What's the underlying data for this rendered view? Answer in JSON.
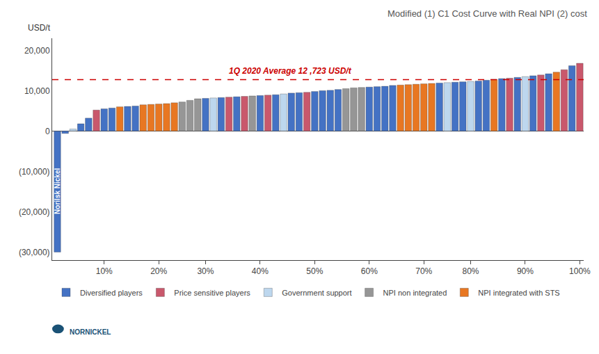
{
  "chart_data": {
    "type": "bar",
    "title": "Modified (1) C1 Cost Curve with Real NPI (2) cost",
    "y_label": "USD/t",
    "categories": [
      null,
      null,
      null,
      null,
      null,
      null,
      "10%",
      null,
      null,
      null,
      null,
      null,
      null,
      "20%",
      null,
      null,
      null,
      null,
      null,
      "30%",
      null,
      null,
      null,
      null,
      null,
      null,
      "40%",
      null,
      null,
      null,
      null,
      null,
      null,
      "50%",
      null,
      null,
      null,
      null,
      null,
      null,
      "60%",
      null,
      null,
      null,
      null,
      null,
      null,
      "70%",
      null,
      null,
      null,
      null,
      null,
      "80%",
      null,
      null,
      null,
      null,
      null,
      null,
      "90%",
      null,
      null,
      null,
      null,
      null,
      null,
      "100%"
    ],
    "series": [
      {
        "name": "Diversified players",
        "color": "#4472C4",
        "values": [
          -30000,
          -600,
          null,
          1800,
          3200,
          null,
          5500,
          5700,
          null,
          6100,
          6200,
          null,
          null,
          null,
          null,
          null,
          null,
          null,
          null,
          8100,
          null,
          8300,
          null,
          8500,
          null,
          null,
          8800,
          null,
          9000,
          null,
          9400,
          9500,
          null,
          9800,
          10000,
          10100,
          10300,
          null,
          null,
          null,
          10900,
          11000,
          11100,
          11300,
          null,
          null,
          null,
          null,
          null,
          11900,
          null,
          12100,
          12200,
          null,
          12400,
          12600,
          null,
          13000,
          null,
          13300,
          null,
          13700,
          null,
          14200,
          null,
          null,
          16200,
          null
        ]
      },
      {
        "name": "Price sensitive players",
        "color": "#C9586C",
        "values": [
          null,
          null,
          null,
          null,
          null,
          5200,
          null,
          null,
          null,
          null,
          null,
          null,
          null,
          null,
          null,
          null,
          null,
          null,
          null,
          null,
          null,
          null,
          8400,
          null,
          8600,
          null,
          null,
          8900,
          null,
          null,
          null,
          null,
          9600,
          null,
          null,
          null,
          null,
          null,
          null,
          null,
          null,
          null,
          null,
          null,
          null,
          null,
          null,
          null,
          null,
          null,
          null,
          null,
          null,
          null,
          null,
          null,
          null,
          null,
          13100,
          null,
          null,
          null,
          13900,
          null,
          null,
          15200,
          null,
          16800
        ]
      },
      {
        "name": "Government support",
        "color": "#BDD7EE",
        "values": [
          null,
          null,
          500,
          null,
          null,
          null,
          null,
          null,
          null,
          null,
          null,
          null,
          null,
          null,
          null,
          null,
          null,
          null,
          null,
          null,
          8200,
          null,
          null,
          null,
          null,
          null,
          null,
          null,
          null,
          9200,
          null,
          null,
          null,
          null,
          null,
          null,
          null,
          null,
          null,
          null,
          null,
          null,
          null,
          null,
          null,
          null,
          null,
          null,
          null,
          null,
          12000,
          null,
          null,
          12300,
          null,
          null,
          null,
          null,
          null,
          null,
          13500,
          null,
          null,
          null,
          null,
          null,
          null,
          null
        ]
      },
      {
        "name": "NPI non integrated",
        "color": "#969696",
        "values": [
          null,
          null,
          null,
          null,
          null,
          null,
          null,
          null,
          null,
          null,
          null,
          null,
          null,
          null,
          null,
          null,
          7200,
          7600,
          8000,
          null,
          null,
          null,
          null,
          null,
          null,
          8700,
          null,
          null,
          null,
          null,
          null,
          null,
          null,
          null,
          null,
          null,
          null,
          10500,
          10700,
          10800,
          null,
          null,
          null,
          null,
          null,
          null,
          null,
          null,
          null,
          null,
          null,
          null,
          null,
          null,
          null,
          null,
          null,
          null,
          null,
          null,
          null,
          null,
          null,
          null,
          null,
          null,
          null,
          null
        ]
      },
      {
        "name": "NPI integrated with STS",
        "color": "#E87722",
        "values": [
          null,
          null,
          null,
          null,
          null,
          null,
          null,
          null,
          6000,
          null,
          null,
          6500,
          6600,
          6700,
          6800,
          7000,
          null,
          null,
          null,
          null,
          null,
          null,
          null,
          null,
          null,
          null,
          null,
          null,
          null,
          null,
          null,
          null,
          null,
          null,
          null,
          null,
          null,
          null,
          null,
          null,
          null,
          null,
          null,
          null,
          11400,
          11500,
          11600,
          11700,
          11800,
          null,
          null,
          null,
          null,
          null,
          null,
          null,
          12800,
          null,
          null,
          null,
          null,
          null,
          null,
          null,
          14600,
          null,
          null,
          null
        ]
      }
    ],
    "reference_line": {
      "value": 12723,
      "label": "1Q 2020 Average 12 ,723 USD/t",
      "color": "#CC0000"
    },
    "annotations": [
      {
        "text": "Norilsk Nickel",
        "x": 0,
        "y": -15000
      },
      {
        "text": "NORNICKEL"
      }
    ],
    "ylim": [
      -32000,
      23000
    ],
    "yticks": [
      {
        "value": -30000,
        "label": "(30,000)"
      },
      {
        "value": -20000,
        "label": "(20,000)"
      },
      {
        "value": -10000,
        "label": "(10,000)"
      },
      0,
      {
        "value": 10000,
        "label": "10,000"
      },
      {
        "value": 20000,
        "label": "20,000"
      }
    ],
    "grid": false,
    "legend": "bottom"
  }
}
